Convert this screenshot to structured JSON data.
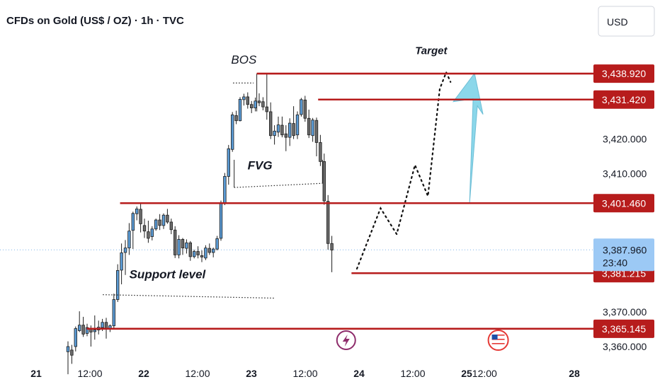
{
  "header": {
    "title": "CFDs on Gold (US$ / OZ) · 1h · TVC",
    "currency_button": "USD"
  },
  "chart_data": {
    "type": "candlestick",
    "title": "CFDs on Gold (US$ / OZ) · 1h · TVC",
    "currency": "USD",
    "y_ticks": [
      {
        "value": 3420,
        "label": "3,420.000"
      },
      {
        "value": 3410,
        "label": "3,410.000"
      },
      {
        "value": 3370,
        "label": "3,370.000"
      },
      {
        "value": 3360,
        "label": "3,360.000"
      }
    ],
    "x_ticks": [
      {
        "day": 21.0,
        "label": "21",
        "major": true
      },
      {
        "day": 21.5,
        "label": "12:00",
        "major": false
      },
      {
        "day": 22.0,
        "label": "22",
        "major": true
      },
      {
        "day": 22.5,
        "label": "12:00",
        "major": false
      },
      {
        "day": 23.0,
        "label": "23",
        "major": true
      },
      {
        "day": 23.5,
        "label": "12:00",
        "major": false
      },
      {
        "day": 24.0,
        "label": "24",
        "major": true
      },
      {
        "day": 24.5,
        "label": "12:00",
        "major": false
      },
      {
        "day": 25.0,
        "label": "25",
        "major": true
      },
      {
        "day": 25.5,
        "label": "12:00",
        "major": false
      },
      {
        "day": 28.0,
        "label": "28",
        "major": true
      }
    ],
    "levels": [
      {
        "value": 3438.92,
        "label": "3,438.920",
        "from_day": 23.05
      },
      {
        "value": 3431.42,
        "label": "3,431.420",
        "from_day": 23.62
      },
      {
        "value": 3401.46,
        "label": "3,401.460",
        "from_day": 21.78
      },
      {
        "value": 3381.215,
        "label": "3,381.215",
        "from_day": 23.93
      },
      {
        "value": 3365.145,
        "label": "3,365.145",
        "from_day": 21.47
      }
    ],
    "last_price": {
      "value": 3387.96,
      "label": "3,387.960",
      "countdown": "23:40"
    },
    "annotations": [
      {
        "text": "BOS",
        "day": 22.93,
        "value": 3441.8
      },
      {
        "text": "FVG",
        "day": 23.08,
        "value": 3411.2
      },
      {
        "text": "Support level",
        "day": 22.22,
        "value": 3379.7
      },
      {
        "text": "Target",
        "day": 24.67,
        "value": 3444.6
      }
    ],
    "events": [
      {
        "kind": "lightning-event",
        "day": 23.88
      },
      {
        "kind": "us-flag-event",
        "day": 25.88
      }
    ],
    "colors": {
      "level_line": "#b71c1c",
      "up_candle": "#5b9bd5",
      "down_candle": "#6b6b6b",
      "arrow": "#7fd3e8",
      "last_price_bg": "#9cc9f5"
    },
    "candles": [
      [
        3358.5,
        3361.5,
        3352.0,
        3360.0
      ],
      [
        3359.0,
        3360.5,
        3355.0,
        3357.5
      ],
      [
        3360.0,
        3365.8,
        3358.6,
        3365.2
      ],
      [
        3364.6,
        3370.2,
        3364.2,
        3366.2
      ],
      [
        3366.2,
        3368.6,
        3362.8,
        3363.6
      ],
      [
        3363.8,
        3366.6,
        3363.0,
        3365.5
      ],
      [
        3365.3,
        3366.1,
        3360.0,
        3364.2
      ],
      [
        3364.3,
        3369.0,
        3362.0,
        3364.8
      ],
      [
        3364.8,
        3367.5,
        3363.5,
        3365.6
      ],
      [
        3365.5,
        3368.0,
        3364.5,
        3367.0
      ],
      [
        3367.0,
        3368.3,
        3362.3,
        3365.2
      ],
      [
        3365.2,
        3366.4,
        3364.2,
        3366.0
      ],
      [
        3366.0,
        3375.3,
        3365.0,
        3373.6
      ],
      [
        3373.6,
        3383.8,
        3372.9,
        3382.0
      ],
      [
        3382.1,
        3389.8,
        3378.0,
        3387.1
      ],
      [
        3387.2,
        3390.8,
        3380.7,
        3388.5
      ],
      [
        3388.5,
        3395.7,
        3386.5,
        3393.4
      ],
      [
        3393.6,
        3399.0,
        3388.2,
        3398.5
      ],
      [
        3398.4,
        3400.5,
        3396.5,
        3399.8
      ],
      [
        3399.7,
        3401.4,
        3393.0,
        3395.5
      ],
      [
        3395.0,
        3397.0,
        3391.4,
        3393.4
      ],
      [
        3393.2,
        3396.4,
        3390.0,
        3391.3
      ],
      [
        3391.8,
        3394.8,
        3390.7,
        3394.0
      ],
      [
        3394.0,
        3397.0,
        3393.5,
        3396.6
      ],
      [
        3396.6,
        3398.3,
        3393.7,
        3395.0
      ],
      [
        3395.0,
        3398.5,
        3394.0,
        3398.0
      ],
      [
        3398.0,
        3399.8,
        3395.5,
        3396.0
      ],
      [
        3396.0,
        3397.0,
        3392.5,
        3393.8
      ],
      [
        3393.7,
        3394.8,
        3385.6,
        3386.5
      ],
      [
        3386.5,
        3392.2,
        3385.5,
        3391.0
      ],
      [
        3391.0,
        3391.4,
        3386.5,
        3388.5
      ],
      [
        3388.4,
        3391.0,
        3386.9,
        3390.0
      ],
      [
        3390.0,
        3390.5,
        3384.8,
        3386.0
      ],
      [
        3386.0,
        3388.0,
        3385.5,
        3387.5
      ],
      [
        3387.5,
        3389.0,
        3385.5,
        3386.5
      ],
      [
        3386.3,
        3387.8,
        3384.4,
        3385.9
      ],
      [
        3385.6,
        3389.3,
        3385.0,
        3388.5
      ],
      [
        3388.4,
        3389.8,
        3386.5,
        3387.2
      ],
      [
        3387.2,
        3388.6,
        3385.8,
        3388.2
      ],
      [
        3388.2,
        3392.0,
        3387.8,
        3391.2
      ],
      [
        3391.3,
        3402.2,
        3390.6,
        3401.3
      ],
      [
        3401.4,
        3410.2,
        3400.9,
        3409.2
      ],
      [
        3409.2,
        3418.3,
        3406.8,
        3417.2
      ],
      [
        3417.0,
        3427.8,
        3416.3,
        3427.0
      ],
      [
        3426.8,
        3428.2,
        3424.3,
        3425.3
      ],
      [
        3425.3,
        3432.1,
        3425.1,
        3431.5
      ],
      [
        3431.4,
        3433.1,
        3429.7,
        3432.2
      ],
      [
        3432.2,
        3433.5,
        3428.8,
        3430.0
      ],
      [
        3430.0,
        3431.0,
        3427.5,
        3429.0
      ],
      [
        3429.0,
        3432.0,
        3428.0,
        3431.0
      ],
      [
        3431.0,
        3433.2,
        3429.5,
        3430.5
      ],
      [
        3430.8,
        3432.1,
        3428.3,
        3429.3
      ],
      [
        3429.3,
        3439.0,
        3425.6,
        3427.9
      ],
      [
        3427.9,
        3430.6,
        3420.0,
        3421.0
      ],
      [
        3421.0,
        3424.0,
        3418.4,
        3422.3
      ],
      [
        3422.0,
        3426.5,
        3420.6,
        3424.1
      ],
      [
        3424.0,
        3426.5,
        3420.5,
        3421.2
      ],
      [
        3421.5,
        3424.0,
        3416.5,
        3420.5
      ],
      [
        3420.5,
        3426.0,
        3418.0,
        3424.6
      ],
      [
        3424.5,
        3429.5,
        3420.0,
        3421.0
      ],
      [
        3421.2,
        3428.0,
        3420.0,
        3427.0
      ],
      [
        3427.1,
        3431.9,
        3426.5,
        3431.4
      ],
      [
        3431.3,
        3432.5,
        3425.0,
        3426.0
      ],
      [
        3426.0,
        3428.5,
        3420.3,
        3421.2
      ],
      [
        3421.0,
        3426.1,
        3419.2,
        3425.5
      ],
      [
        3425.4,
        3426.2,
        3415.0,
        3419.0
      ],
      [
        3419.0,
        3421.2,
        3412.2,
        3413.5
      ],
      [
        3413.5,
        3415.8,
        3401.0,
        3402.1
      ],
      [
        3402.0,
        3403.8,
        3388.0,
        3389.8
      ],
      [
        3389.8,
        3392.0,
        3381.5,
        3387.9
      ]
    ],
    "projection_path": [
      [
        23.98,
        3382.5
      ],
      [
        24.2,
        3400.0
      ],
      [
        24.35,
        3392.5
      ],
      [
        24.52,
        3412.5
      ],
      [
        24.64,
        3403.5
      ],
      [
        24.75,
        3434.5
      ],
      [
        24.81,
        3439.3
      ],
      [
        24.85,
        3436.5
      ]
    ],
    "target_arrow": {
      "from": [
        25.08,
        3401.5
      ],
      "to": [
        25.22,
        3439.0
      ]
    }
  }
}
